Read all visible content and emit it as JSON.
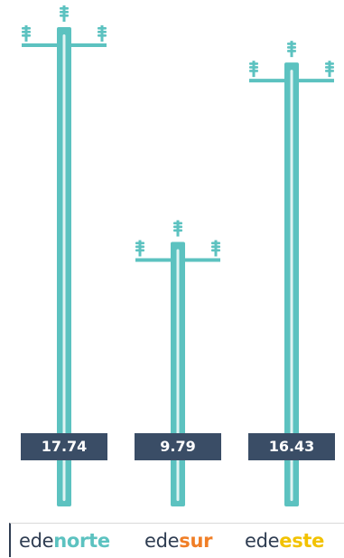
{
  "chart_data": {
    "type": "bar",
    "categories": [
      "edenorte",
      "edesur",
      "edeeste"
    ],
    "values": [
      17.74,
      9.79,
      16.43
    ],
    "value_labels": [
      "17.74",
      "9.79",
      "16.43"
    ],
    "title": "",
    "xlabel": "",
    "ylabel": "",
    "ylim": [
      0,
      17.74
    ],
    "grid": false,
    "legend": "none",
    "mark_style": "utility-pole",
    "colors": {
      "pole": "#5cc2c0",
      "pole_highlight": "#e0f4f3",
      "label_bg": "#3a4d66",
      "label_text": "#ffffff"
    }
  },
  "brands": [
    {
      "prefix": "ede",
      "suffix": "norte",
      "suffix_color": "#5cc2c0"
    },
    {
      "prefix": "ede",
      "suffix": "sur",
      "suffix_color": "#f07e26"
    },
    {
      "prefix": "ede",
      "suffix": "este",
      "suffix_color": "#f2c200"
    }
  ]
}
